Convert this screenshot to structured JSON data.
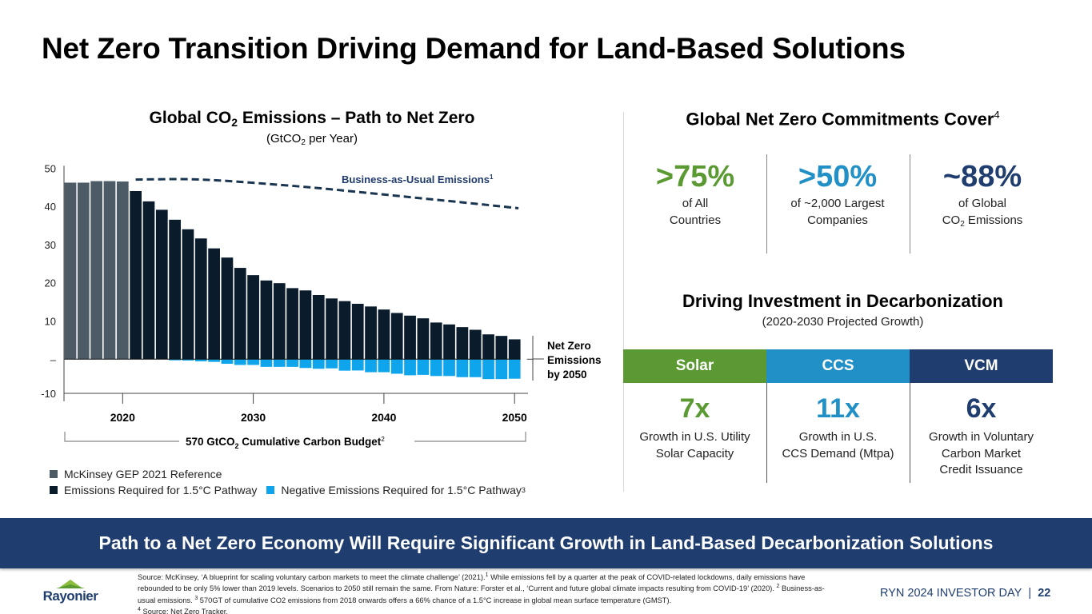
{
  "page": {
    "title": "Net Zero Transition Driving Demand for Land-Based Solutions"
  },
  "colors": {
    "reference_bar": "#4d5b67",
    "pathway_bar": "#0a1c2c",
    "negative_bar": "#0ea5ec",
    "bau_line": "#1a3550",
    "green": "#5b9a32",
    "teal": "#2190c6",
    "navy": "#1f3d6e"
  },
  "chart_data": {
    "type": "bar",
    "title_pre": "Global CO",
    "title_sub": "2",
    "title_post": " Emissions – Path to Net Zero",
    "subtitle_pre": "(GtCO",
    "subtitle_sub": "2",
    "subtitle_post": " per Year)",
    "ylabel": "GtCO2 per Year",
    "ylim": [
      -10,
      50
    ],
    "yticks": [
      50,
      40,
      30,
      20,
      10,
      0,
      -10
    ],
    "ytick_labels": [
      "50",
      "40",
      "30",
      "20",
      "10",
      "–",
      "-10"
    ],
    "xlim": [
      2015.5,
      2050.6
    ],
    "xticks": [
      2020,
      2030,
      2040,
      2050
    ],
    "xtick_labels": [
      "2020",
      "2030",
      "2040",
      "2050"
    ],
    "categories": [
      2016,
      2017,
      2018,
      2019,
      2020,
      2021,
      2022,
      2023,
      2024,
      2025,
      2026,
      2027,
      2028,
      2029,
      2030,
      2031,
      2032,
      2033,
      2034,
      2035,
      2036,
      2037,
      2038,
      2039,
      2040,
      2041,
      2042,
      2043,
      2044,
      2045,
      2046,
      2047,
      2048,
      2049,
      2050
    ],
    "series": [
      {
        "name": "McKinsey GEP 2021 Reference",
        "color_key": "reference_bar",
        "values": [
          46.2,
          46.2,
          46.6,
          46.6,
          46.5,
          null,
          null,
          null,
          null,
          null,
          null,
          null,
          null,
          null,
          null,
          null,
          null,
          null,
          null,
          null,
          null,
          null,
          null,
          null,
          null,
          null,
          null,
          null,
          null,
          null,
          null,
          null,
          null,
          null,
          null
        ]
      },
      {
        "name": "Emissions Required for 1.5°C Pathway",
        "color_key": "pathway_bar",
        "values": [
          null,
          null,
          null,
          null,
          null,
          44.0,
          41.3,
          39.1,
          36.5,
          34.0,
          31.6,
          29.0,
          26.6,
          23.9,
          22.0,
          20.6,
          19.9,
          18.6,
          18.0,
          16.8,
          15.9,
          15.2,
          14.5,
          13.8,
          13.0,
          12.1,
          11.4,
          10.7,
          9.6,
          9.1,
          8.4,
          7.7,
          6.5,
          6.1,
          5.2
        ]
      },
      {
        "name": "Negative Emissions Required for 1.5°C Pathway",
        "superscript": "3",
        "color_key": "negative_bar",
        "values": [
          null,
          null,
          null,
          null,
          null,
          null,
          null,
          null,
          -0.3,
          -0.35,
          -0.55,
          -0.7,
          -1.2,
          -1.5,
          -1.5,
          -2.0,
          -2.0,
          -2.0,
          -2.3,
          -2.5,
          -2.4,
          -3.0,
          -2.95,
          -3.4,
          -3.4,
          -3.8,
          -4.2,
          -4.1,
          -4.4,
          -4.4,
          -4.7,
          -4.7,
          -5.2,
          -5.2,
          -5.1
        ]
      }
    ],
    "bau_line": {
      "name": "Business-as-Usual Emissions",
      "superscript": "1",
      "style": "dashed",
      "x": [
        2021,
        2024.5,
        2027.5,
        2030.6,
        2034.7,
        2038.8,
        2042.9,
        2047,
        2050.3
      ],
      "y": [
        47.0,
        47.2,
        46.8,
        46.0,
        44.9,
        43.5,
        42.1,
        40.7,
        39.5
      ]
    },
    "annotations": {
      "net_zero": [
        "Net Zero",
        "Emissions",
        "by 2050"
      ],
      "budget_pre": "570 GtCO",
      "budget_sub": "2",
      "budget_post": " Cumulative Carbon Budget",
      "budget_sup": "2"
    },
    "legend": {
      "placement": "bottom-left",
      "items": [
        {
          "label": "McKinsey GEP 2021 Reference",
          "color_key": "reference_bar",
          "sup": ""
        },
        {
          "label": "Emissions Required for 1.5°C Pathway",
          "color_key": "pathway_bar",
          "sup": ""
        },
        {
          "label": "Negative Emissions Required for 1.5°C Pathway",
          "color_key": "negative_bar",
          "sup": "3"
        }
      ]
    }
  },
  "commitments": {
    "title": "Global Net Zero Commitments Cover",
    "title_sup": "4",
    "stats": [
      {
        "value": ">75%",
        "line1": "of All",
        "line2": "Countries"
      },
      {
        "value": ">50%",
        "line1": "of ~2,000 Largest",
        "line2": "Companies"
      },
      {
        "value": "~88%",
        "line1": "of Global",
        "line2_pre": "CO",
        "line2_sub": "2",
        "line2_post": " Emissions"
      }
    ]
  },
  "investment": {
    "title": "Driving Investment in Decarbonization",
    "subtitle": "(2020-2030 Projected Growth)",
    "columns": [
      {
        "header": "Solar",
        "value": "7x",
        "desc": [
          "Growth in U.S. Utility",
          "Solar Capacity"
        ]
      },
      {
        "header": "CCS",
        "value": "11x",
        "desc": [
          "Growth in U.S.",
          "CCS Demand (Mtpa)"
        ]
      },
      {
        "header": "VCM",
        "value": "6x",
        "desc": [
          "Growth in Voluntary",
          "Carbon Market",
          "Credit Issuance"
        ]
      }
    ]
  },
  "banner": {
    "text": "Path to a Net Zero Economy Will Require Significant Growth in Land-Based Decarbonization Solutions"
  },
  "footer": {
    "logo_text": "Rayonier",
    "footnote": {
      "p1": "Source: McKinsey, ‘A blueprint for scaling voluntary carbon markets to meet the climate challenge’ (2021).",
      "s1": "1",
      "p2": " While emissions fell by a quarter at the peak of COVID-related lockdowns, daily emissions have rebounded to be only 5% lower than 2019 levels. Scenarios to 2050 still remain the same. From Nature: Forster et al., ‘Current and future global climate impacts resulting from COVID-19’ (2020). ",
      "s2": "2",
      "p3": " Business-as-usual emissions. ",
      "s3": "3",
      "p4": " 570GT of cumulative CO2 emissions from 2018 onwards offers a 66% chance of a 1.5°C increase in global mean surface temperature (GMST).",
      "s4": "4",
      "p5": " Source: Net Zero Tracker."
    },
    "event": "RYN 2024 INVESTOR DAY",
    "separator": "|",
    "page_number": "22"
  }
}
